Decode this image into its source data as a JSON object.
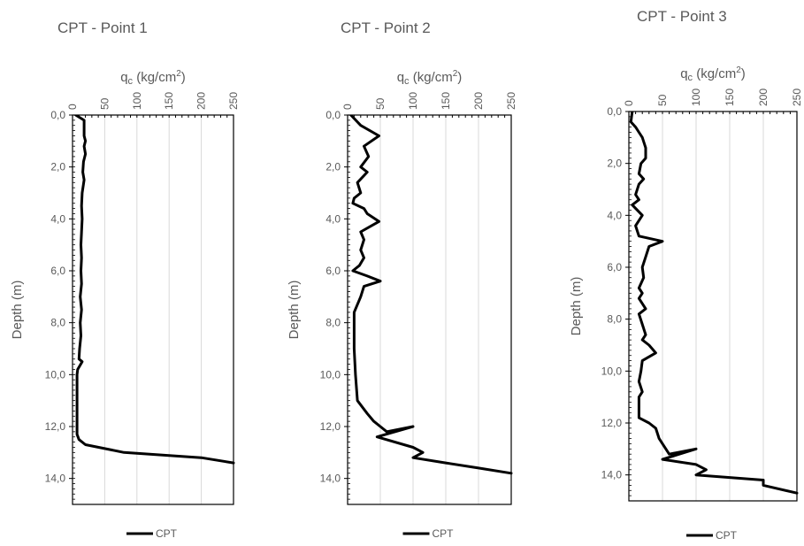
{
  "chart_data": [
    {
      "type": "line",
      "title": "CPT - Point 1",
      "xlabel_main": "q",
      "xlabel_sub": "c",
      "xlabel_unit_pre": " (kg/cm",
      "xlabel_unit_sup": "2",
      "xlabel_unit_post": ")",
      "ylabel": "Depth (m)",
      "xlim": [
        0,
        250
      ],
      "xticks": [
        "0",
        "50",
        "100",
        "150",
        "200",
        "250"
      ],
      "xtick_values": [
        0,
        50,
        100,
        150,
        200,
        250
      ],
      "ylim": [
        0,
        15
      ],
      "yticks": [
        "0,0",
        "2,0",
        "4,0",
        "6,0",
        "8,0",
        "10,0",
        "12,0",
        "14,0"
      ],
      "ytick_values": [
        0,
        2,
        4,
        6,
        8,
        10,
        12,
        14
      ],
      "ytick_minor_step": 0.2,
      "x_axis_position": "top",
      "y_axis_inverted": true,
      "grid": "vertical",
      "legend": "bottom",
      "series": [
        {
          "name": "CPT",
          "color": "#000000",
          "points": [
            [
              5,
              0.0
            ],
            [
              18,
              0.2
            ],
            [
              18,
              0.8
            ],
            [
              20,
              1.0
            ],
            [
              18,
              1.2
            ],
            [
              20,
              1.5
            ],
            [
              17,
              1.8
            ],
            [
              16,
              2.2
            ],
            [
              18,
              2.5
            ],
            [
              15,
              3.0
            ],
            [
              14,
              3.5
            ],
            [
              15,
              4.0
            ],
            [
              14,
              4.5
            ],
            [
              13,
              5.0
            ],
            [
              14,
              5.5
            ],
            [
              13,
              6.0
            ],
            [
              14,
              6.5
            ],
            [
              12,
              7.0
            ],
            [
              14,
              7.5
            ],
            [
              12,
              8.0
            ],
            [
              13,
              8.5
            ],
            [
              11,
              9.0
            ],
            [
              10,
              9.4
            ],
            [
              15,
              9.5
            ],
            [
              8,
              9.8
            ],
            [
              7,
              10.0
            ],
            [
              7,
              11.0
            ],
            [
              7,
              12.3
            ],
            [
              10,
              12.5
            ],
            [
              20,
              12.7
            ],
            [
              80,
              13.0
            ],
            [
              200,
              13.2
            ],
            [
              250,
              13.4
            ]
          ]
        }
      ]
    },
    {
      "type": "line",
      "title": "CPT - Point 2",
      "xlabel_main": "q",
      "xlabel_sub": "c",
      "xlabel_unit_pre": " (kg/cm",
      "xlabel_unit_sup": "2",
      "xlabel_unit_post": ")",
      "ylabel": "Depth (m)",
      "xlim": [
        0,
        250
      ],
      "xticks": [
        "0",
        "50",
        "100",
        "150",
        "200",
        "250"
      ],
      "xtick_values": [
        0,
        50,
        100,
        150,
        200,
        250
      ],
      "ylim": [
        0,
        15
      ],
      "yticks": [
        "0,0",
        "2,0",
        "4,0",
        "6,0",
        "8,0",
        "10,0",
        "12,0",
        "14,0"
      ],
      "ytick_values": [
        0,
        2,
        4,
        6,
        8,
        10,
        12,
        14
      ],
      "ytick_minor_step": 0.2,
      "x_axis_position": "top",
      "y_axis_inverted": true,
      "grid": "vertical",
      "legend": "bottom",
      "series": [
        {
          "name": "CPT",
          "color": "#000000",
          "points": [
            [
              5,
              0.0
            ],
            [
              20,
              0.4
            ],
            [
              48,
              0.8
            ],
            [
              25,
              1.2
            ],
            [
              32,
              1.6
            ],
            [
              20,
              2.0
            ],
            [
              30,
              2.2
            ],
            [
              15,
              2.6
            ],
            [
              20,
              3.0
            ],
            [
              10,
              3.2
            ],
            [
              8,
              3.4
            ],
            [
              25,
              3.6
            ],
            [
              30,
              3.8
            ],
            [
              48,
              4.1
            ],
            [
              20,
              4.5
            ],
            [
              25,
              4.8
            ],
            [
              20,
              5.2
            ],
            [
              25,
              5.5
            ],
            [
              18,
              5.8
            ],
            [
              8,
              6.0
            ],
            [
              30,
              6.2
            ],
            [
              50,
              6.4
            ],
            [
              25,
              6.6
            ],
            [
              20,
              7.0
            ],
            [
              10,
              7.6
            ],
            [
              10,
              9.0
            ],
            [
              12,
              10.0
            ],
            [
              15,
              11.0
            ],
            [
              30,
              11.5
            ],
            [
              40,
              11.8
            ],
            [
              50,
              12.0
            ],
            [
              60,
              12.2
            ],
            [
              100,
              12.0
            ],
            [
              45,
              12.4
            ],
            [
              100,
              12.8
            ],
            [
              115,
              13.0
            ],
            [
              100,
              13.2
            ],
            [
              150,
              13.4
            ],
            [
              200,
              13.6
            ],
            [
              250,
              13.8
            ]
          ]
        }
      ]
    },
    {
      "type": "line",
      "title": "CPT - Point 3",
      "xlabel_main": "q",
      "xlabel_sub": "c",
      "xlabel_unit_pre": " (kg/cm",
      "xlabel_unit_sup": "2",
      "xlabel_unit_post": ")",
      "ylabel": "Depth (m)",
      "xlim": [
        0,
        250
      ],
      "xticks": [
        "0",
        "50",
        "100",
        "150",
        "200",
        "250"
      ],
      "xtick_values": [
        0,
        50,
        100,
        150,
        200,
        250
      ],
      "ylim": [
        0,
        15
      ],
      "yticks": [
        "0,0",
        "2,0",
        "4,0",
        "6,0",
        "8,0",
        "10,0",
        "12,0",
        "14,0"
      ],
      "ytick_values": [
        0,
        2,
        4,
        6,
        8,
        10,
        12,
        14
      ],
      "ytick_minor_step": 0.2,
      "x_axis_position": "top",
      "y_axis_inverted": true,
      "grid": "vertical",
      "legend": "bottom",
      "series": [
        {
          "name": "CPT",
          "color": "#000000",
          "points": [
            [
              5,
              0.0
            ],
            [
              3,
              0.4
            ],
            [
              10,
              0.6
            ],
            [
              15,
              0.8
            ],
            [
              20,
              1.0
            ],
            [
              25,
              1.4
            ],
            [
              25,
              1.8
            ],
            [
              18,
              2.0
            ],
            [
              15,
              2.4
            ],
            [
              22,
              2.6
            ],
            [
              15,
              2.8
            ],
            [
              10,
              3.2
            ],
            [
              15,
              3.4
            ],
            [
              5,
              3.6
            ],
            [
              20,
              4.0
            ],
            [
              10,
              4.4
            ],
            [
              15,
              4.8
            ],
            [
              50,
              5.0
            ],
            [
              30,
              5.2
            ],
            [
              25,
              5.6
            ],
            [
              20,
              6.0
            ],
            [
              22,
              6.4
            ],
            [
              15,
              6.8
            ],
            [
              20,
              7.0
            ],
            [
              15,
              7.2
            ],
            [
              25,
              7.6
            ],
            [
              15,
              7.8
            ],
            [
              20,
              8.2
            ],
            [
              25,
              8.6
            ],
            [
              20,
              8.8
            ],
            [
              30,
              9.0
            ],
            [
              40,
              9.3
            ],
            [
              20,
              9.6
            ],
            [
              18,
              10.0
            ],
            [
              15,
              10.4
            ],
            [
              20,
              10.8
            ],
            [
              15,
              11.0
            ],
            [
              15,
              11.8
            ],
            [
              30,
              12.0
            ],
            [
              40,
              12.2
            ],
            [
              45,
              12.6
            ],
            [
              55,
              13.0
            ],
            [
              60,
              13.2
            ],
            [
              100,
              13.0
            ],
            [
              50,
              13.4
            ],
            [
              100,
              13.6
            ],
            [
              115,
              13.8
            ],
            [
              100,
              14.0
            ],
            [
              200,
              14.2
            ],
            [
              200,
              14.4
            ],
            [
              250,
              14.7
            ]
          ]
        }
      ]
    }
  ]
}
